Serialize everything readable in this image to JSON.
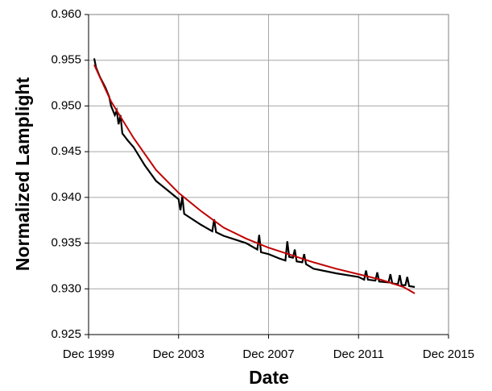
{
  "chart_data": {
    "type": "line",
    "xlabel": "Date",
    "ylabel": "Normalized Lamplight",
    "xlim": [
      "1999-12",
      "2015-12"
    ],
    "xticks": [
      {
        "value": "1999-12",
        "label": "Dec 1999"
      },
      {
        "value": "2003-12",
        "label": "Dec 2003"
      },
      {
        "value": "2007-12",
        "label": "Dec 2007"
      },
      {
        "value": "2011-12",
        "label": "Dec 2011"
      },
      {
        "value": "2015-12",
        "label": "Dec 2015"
      }
    ],
    "ylim": [
      0.925,
      0.96
    ],
    "yticks": [
      0.925,
      {
        "value": 0.93,
        "label": "0.930"
      },
      0.935,
      {
        "value": 0.94,
        "label": "0.940"
      },
      0.945,
      {
        "value": 0.95,
        "label": "0.950"
      },
      0.955,
      {
        "value": 0.96,
        "label": "0.960"
      }
    ],
    "grid": true,
    "series": [
      {
        "color": "#000000",
        "x": [
          "2000-03",
          "2000-04",
          "2000-06",
          "2000-09",
          "2000-11",
          "2000-12",
          "2001-02",
          "2001-03",
          "2001-04",
          "2001-05",
          "2001-06",
          "2001-09",
          "2001-12",
          "2002-06",
          "2002-12",
          "2003-06",
          "2003-12",
          "2004-01",
          "2004-02",
          "2004-03",
          "2004-12",
          "2005-06",
          "2005-07",
          "2005-08",
          "2005-12",
          "2006-12",
          "2007-06",
          "2007-07",
          "2007-08",
          "2007-12",
          "2008-06",
          "2008-09",
          "2008-10",
          "2008-11",
          "2009-01",
          "2009-02",
          "2009-03",
          "2009-06",
          "2009-07",
          "2009-08",
          "2009-12",
          "2010-12",
          "2011-12",
          "2012-03",
          "2012-04",
          "2012-05",
          "2012-09",
          "2012-10",
          "2012-11",
          "2013-04",
          "2013-05",
          "2013-06",
          "2013-09",
          "2013-10",
          "2013-11",
          "2014-01",
          "2014-02",
          "2014-03",
          "2014-06"
        ],
        "values": [
          0.9552,
          0.9542,
          0.9532,
          0.952,
          0.951,
          0.95,
          0.949,
          0.9495,
          0.948,
          0.949,
          0.947,
          0.9462,
          0.9455,
          0.9435,
          0.9418,
          0.9408,
          0.9398,
          0.9386,
          0.9401,
          0.9382,
          0.937,
          0.9363,
          0.9376,
          0.9362,
          0.9358,
          0.935,
          0.9343,
          0.9359,
          0.934,
          0.9338,
          0.9333,
          0.9331,
          0.9352,
          0.9335,
          0.9334,
          0.9343,
          0.933,
          0.9329,
          0.9338,
          0.9327,
          0.9322,
          0.9317,
          0.9313,
          0.931,
          0.932,
          0.931,
          0.9309,
          0.9318,
          0.9308,
          0.9307,
          0.9316,
          0.9306,
          0.9305,
          0.9315,
          0.9304,
          0.9304,
          0.9313,
          0.9303,
          0.9302
        ]
      },
      {
        "color": "#c00000",
        "x": [
          "2000-03",
          "2000-12",
          "2001-12",
          "2002-12",
          "2003-12",
          "2004-12",
          "2005-12",
          "2006-12",
          "2007-12",
          "2008-12",
          "2009-12",
          "2010-12",
          "2011-12",
          "2012-12",
          "2013-12",
          "2014-06"
        ],
        "values": [
          0.9545,
          0.9505,
          0.9465,
          0.943,
          0.9405,
          0.9385,
          0.9367,
          0.9355,
          0.9345,
          0.9337,
          0.9329,
          0.9322,
          0.9316,
          0.931,
          0.9302,
          0.9295
        ]
      }
    ]
  }
}
